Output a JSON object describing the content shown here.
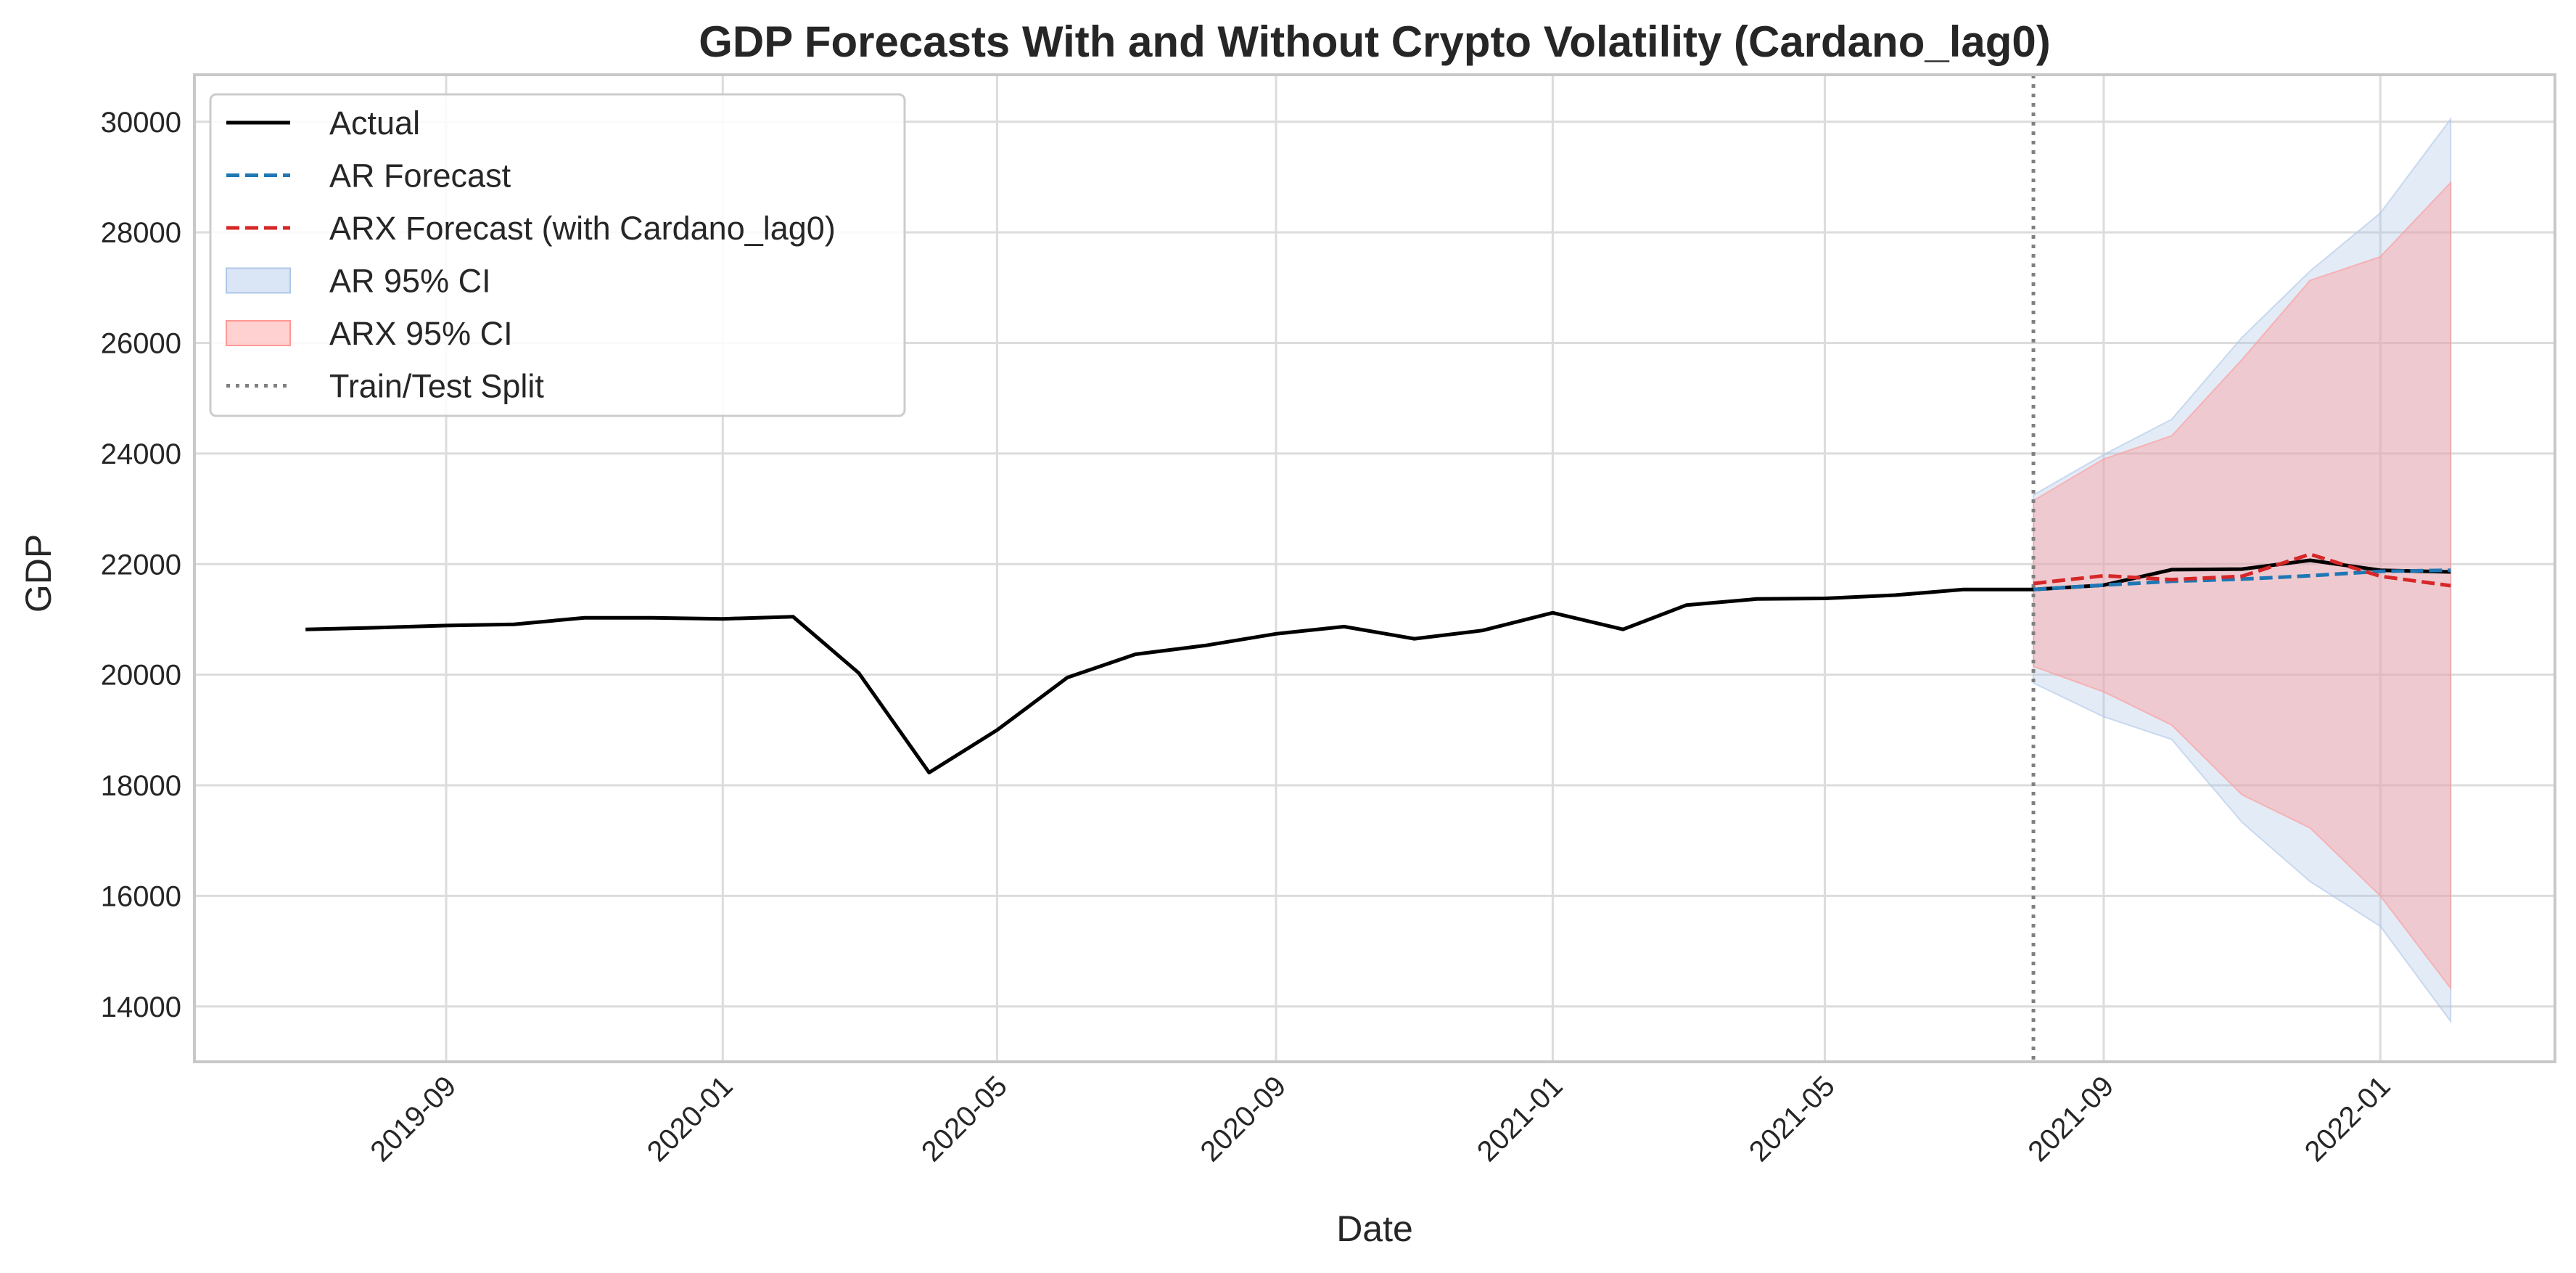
{
  "chart_data": {
    "type": "line",
    "title": "GDP Forecasts With and Without Crypto Volatility (Cardano_lag0)",
    "xlabel": "Date",
    "ylabel": "GDP",
    "x_range": [
      "2019-05-13",
      "2022-03-19"
    ],
    "ylim": [
      13000,
      30850
    ],
    "x_ticks": [
      "2019-09",
      "2020-01",
      "2020-05",
      "2020-09",
      "2021-01",
      "2021-05",
      "2021-09",
      "2022-01"
    ],
    "y_ticks": [
      14000,
      16000,
      18000,
      20000,
      22000,
      24000,
      26000,
      28000,
      30000
    ],
    "grid": true,
    "legend_position": "upper-left",
    "split_date": "2021-08-01",
    "series": [
      {
        "name": "Actual",
        "style": "solid",
        "color": "#000000",
        "points": [
          [
            "2019-07-01",
            20820
          ],
          [
            "2019-08-01",
            20850
          ],
          [
            "2019-09-01",
            20890
          ],
          [
            "2019-10-01",
            20910
          ],
          [
            "2019-11-01",
            21030
          ],
          [
            "2019-12-01",
            21030
          ],
          [
            "2020-01-01",
            21010
          ],
          [
            "2020-02-01",
            21050
          ],
          [
            "2020-03-01",
            20030
          ],
          [
            "2020-04-01",
            18230
          ],
          [
            "2020-05-01",
            19000
          ],
          [
            "2020-06-01",
            19950
          ],
          [
            "2020-07-01",
            20370
          ],
          [
            "2020-08-01",
            20530
          ],
          [
            "2020-09-01",
            20740
          ],
          [
            "2020-10-01",
            20870
          ],
          [
            "2020-11-01",
            20650
          ],
          [
            "2020-12-01",
            20800
          ],
          [
            "2021-01-01",
            21120
          ],
          [
            "2021-02-01",
            20820
          ],
          [
            "2021-03-01",
            21260
          ],
          [
            "2021-04-01",
            21370
          ],
          [
            "2021-05-01",
            21380
          ],
          [
            "2021-06-01",
            21440
          ],
          [
            "2021-07-01",
            21540
          ],
          [
            "2021-08-01",
            21540
          ],
          [
            "2021-09-01",
            21620
          ],
          [
            "2021-10-01",
            21900
          ],
          [
            "2021-11-01",
            21910
          ],
          [
            "2021-12-01",
            22070
          ],
          [
            "2022-01-01",
            21890
          ],
          [
            "2022-02-01",
            21860
          ]
        ]
      },
      {
        "name": "AR Forecast",
        "style": "dashed",
        "color": "#1f77b4",
        "points": [
          [
            "2021-08-01",
            21540
          ],
          [
            "2021-09-01",
            21620
          ],
          [
            "2021-10-01",
            21690
          ],
          [
            "2021-11-01",
            21730
          ],
          [
            "2021-12-01",
            21790
          ],
          [
            "2022-01-01",
            21870
          ],
          [
            "2022-02-01",
            21890
          ]
        ]
      },
      {
        "name": "ARX Forecast (with Cardano_lag0)",
        "style": "dashed",
        "color": "#d62728",
        "points": [
          [
            "2021-08-01",
            21650
          ],
          [
            "2021-09-01",
            21790
          ],
          [
            "2021-10-01",
            21720
          ],
          [
            "2021-11-01",
            21780
          ],
          [
            "2021-12-01",
            22180
          ],
          [
            "2022-01-01",
            21780
          ],
          [
            "2022-02-01",
            21610
          ]
        ]
      }
    ],
    "bands": [
      {
        "name": "AR 95% CI",
        "color": "#aec7e8",
        "opacity": 0.35,
        "x": [
          "2021-08-01",
          "2021-09-01",
          "2021-10-01",
          "2021-11-01",
          "2021-12-01",
          "2022-01-01",
          "2022-02-01"
        ],
        "upper": [
          23250,
          23980,
          24620,
          26100,
          27300,
          28350,
          30050
        ],
        "lower": [
          19850,
          19240,
          18830,
          17330,
          16260,
          15450,
          13730
        ]
      },
      {
        "name": "ARX 95% CI",
        "color": "#ff9896",
        "opacity": 0.4,
        "x": [
          "2021-08-01",
          "2021-09-01",
          "2021-10-01",
          "2021-11-01",
          "2021-12-01",
          "2022-01-01",
          "2022-02-01"
        ],
        "upper": [
          23150,
          23900,
          24320,
          25700,
          27130,
          27560,
          28900
        ],
        "lower": [
          20150,
          19690,
          19090,
          17830,
          17230,
          16000,
          14330
        ]
      }
    ],
    "legend": [
      {
        "label": "Actual",
        "kind": "line",
        "color": "#000000",
        "style": "solid"
      },
      {
        "label": "AR Forecast",
        "kind": "line",
        "color": "#1f77b4",
        "style": "dashed"
      },
      {
        "label": "ARX Forecast (with Cardano_lag0)",
        "kind": "line",
        "color": "#d62728",
        "style": "dashed"
      },
      {
        "label": "AR 95% CI",
        "kind": "patch",
        "color": "#aec7e8"
      },
      {
        "label": "ARX 95% CI",
        "kind": "patch",
        "color": "#ff9896"
      },
      {
        "label": "Train/Test Split",
        "kind": "line",
        "color": "#808080",
        "style": "dotted"
      }
    ]
  }
}
